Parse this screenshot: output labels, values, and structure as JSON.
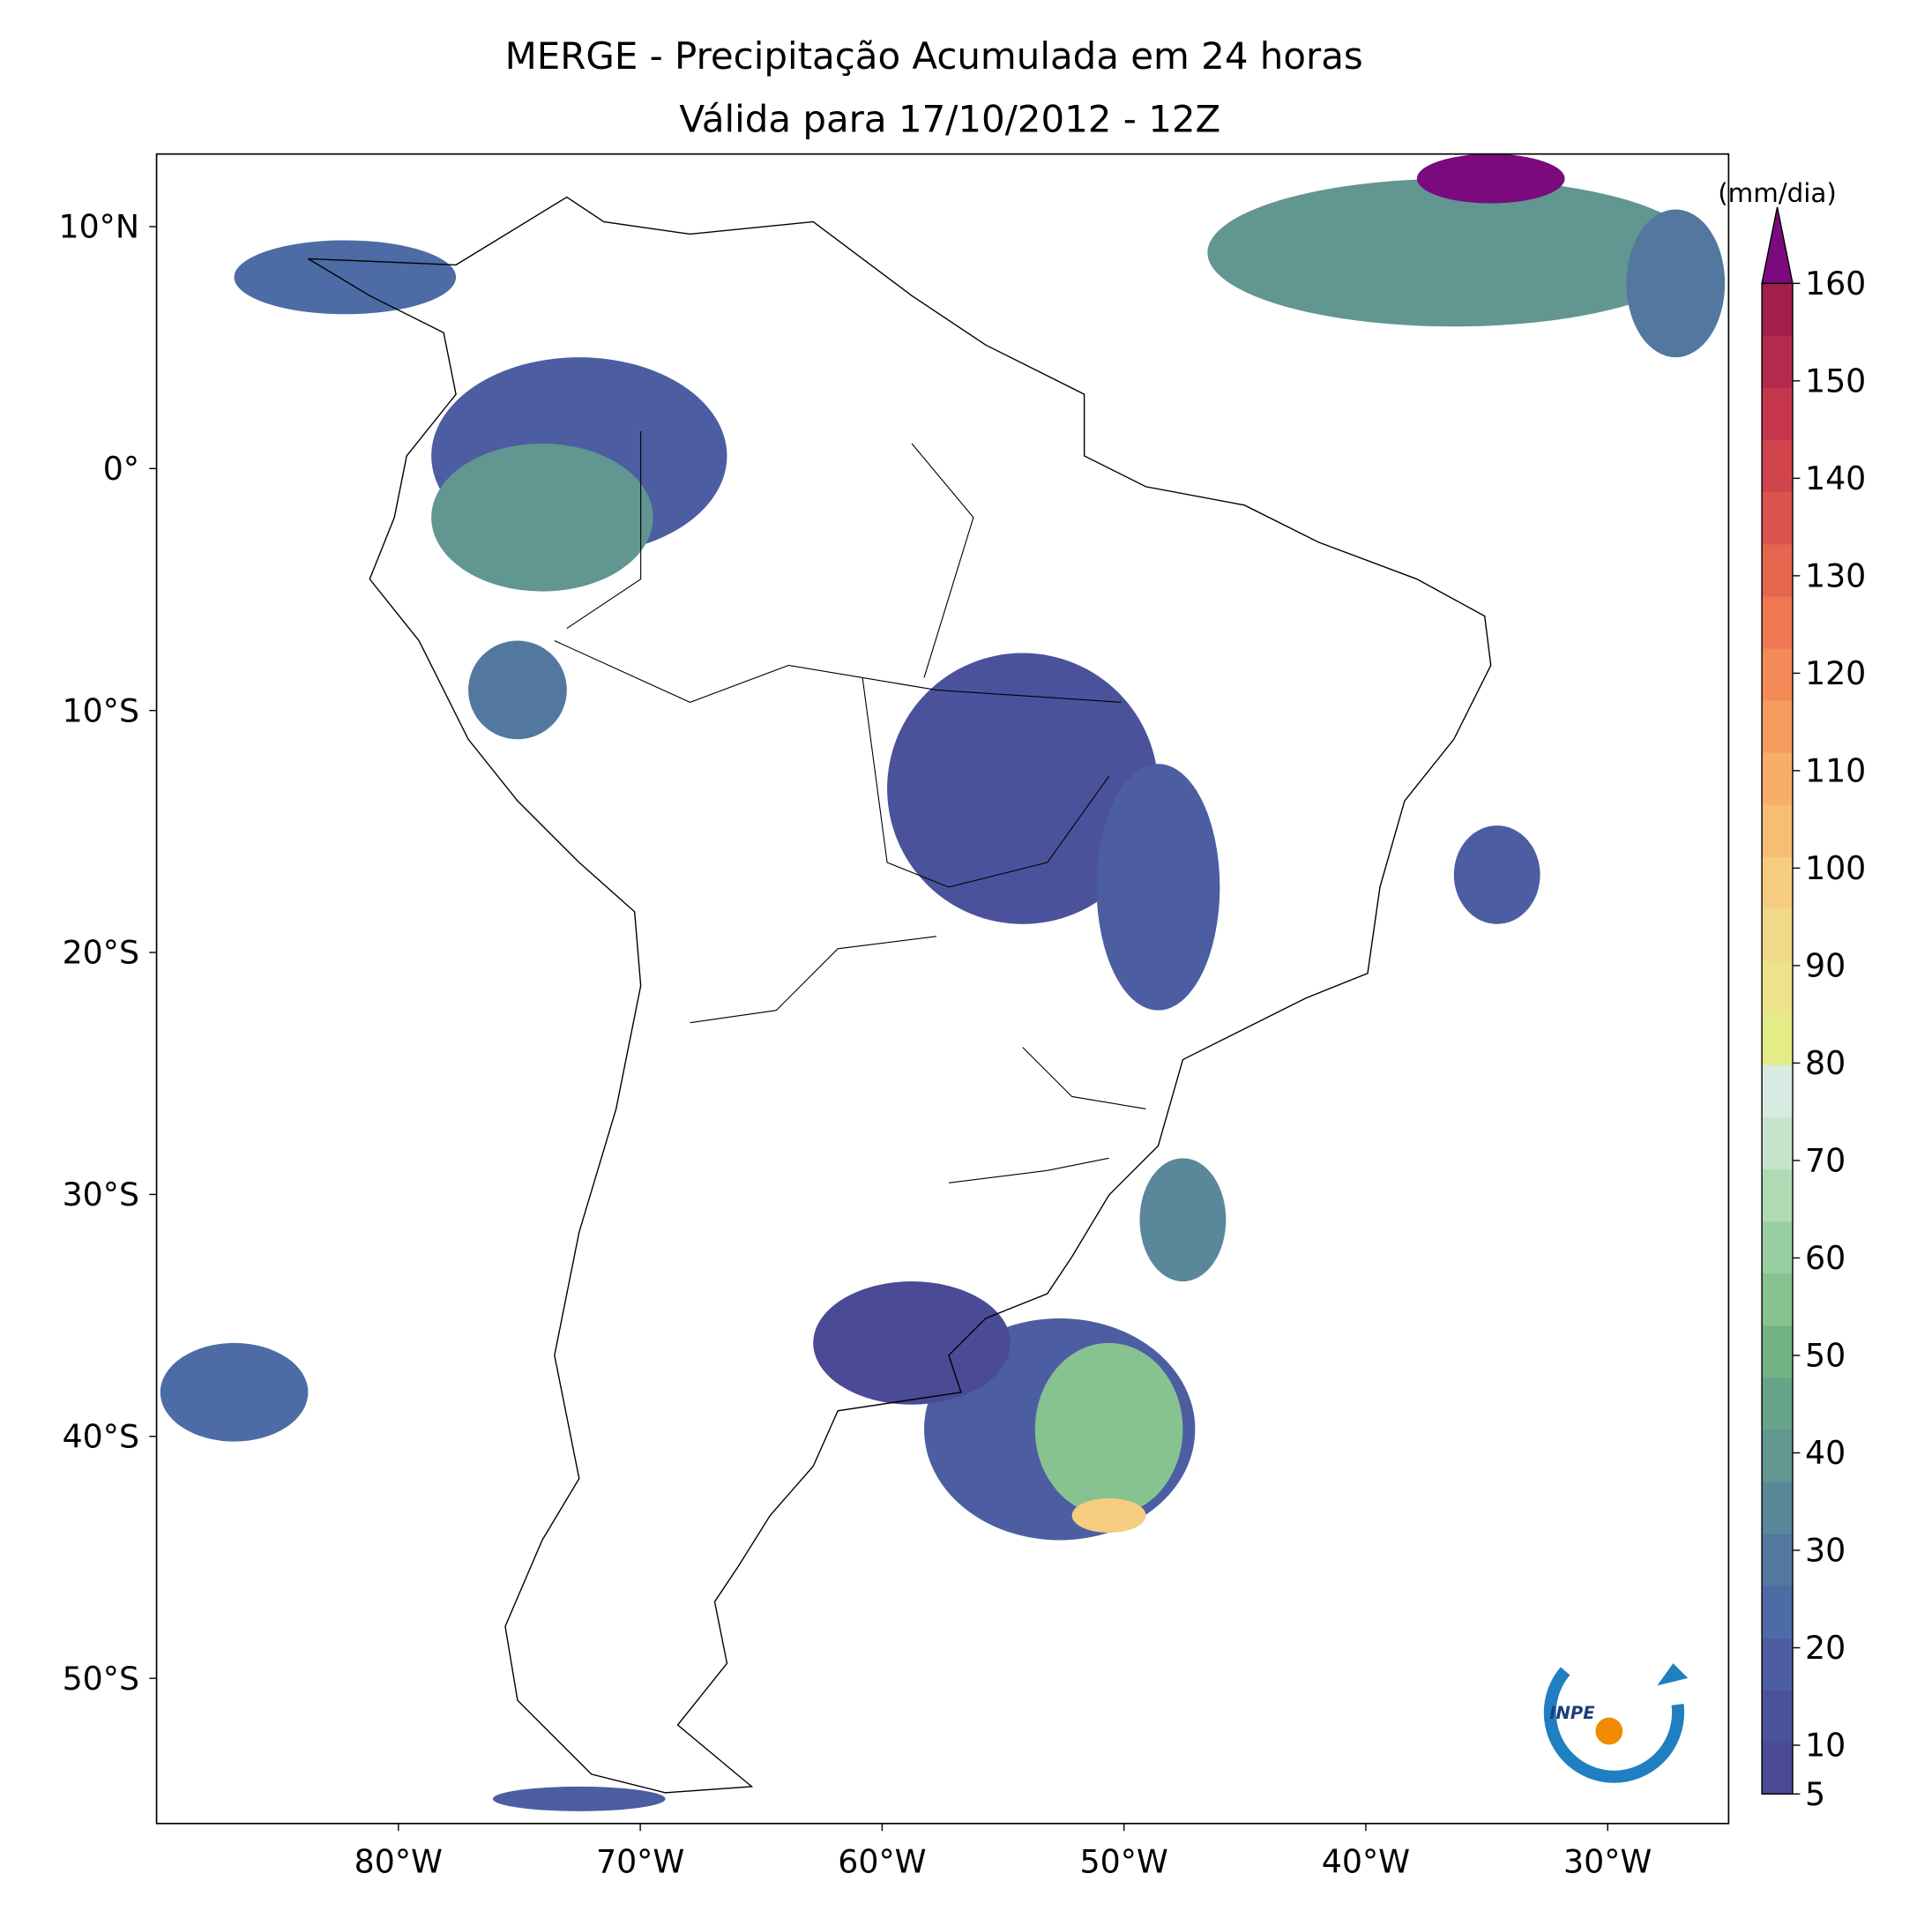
{
  "chart_data": {
    "type": "precipitation-map",
    "title": "MERGE - Precipitação Acumulada em 24 horas",
    "subtitle": "Válida para 17/10/2012 - 12Z",
    "xlim": [
      -90,
      -25
    ],
    "ylim": [
      -56,
      13
    ],
    "xticks": [
      {
        "value": -80,
        "label": "80°W"
      },
      {
        "value": -70,
        "label": "70°W"
      },
      {
        "value": -60,
        "label": "60°W"
      },
      {
        "value": -50,
        "label": "50°W"
      },
      {
        "value": -40,
        "label": "40°W"
      },
      {
        "value": -30,
        "label": "30°W"
      }
    ],
    "yticks": [
      {
        "value": 10,
        "label": "10°N"
      },
      {
        "value": 0,
        "label": "0°"
      },
      {
        "value": -10,
        "label": "10°S"
      },
      {
        "value": -20,
        "label": "20°S"
      },
      {
        "value": -30,
        "label": "30°S"
      },
      {
        "value": -40,
        "label": "40°S"
      },
      {
        "value": -50,
        "label": "50°S"
      }
    ],
    "colorbar": {
      "label": "(mm/dia)",
      "lim": [
        5,
        160
      ],
      "ticks": [
        5,
        10,
        20,
        30,
        40,
        50,
        60,
        70,
        80,
        90,
        100,
        110,
        120,
        130,
        140,
        150,
        160
      ],
      "colors": [
        "#4a4a96",
        "#4b529c",
        "#4c5ea1",
        "#4d6ba5",
        "#52789f",
        "#5a8799",
        "#619691",
        "#68a489",
        "#73b386",
        "#86c391",
        "#99cfa0",
        "#b0dab4",
        "#c6e4cc",
        "#d8ebe2",
        "#e4ec88",
        "#ece38a",
        "#f1d98a",
        "#f6cc80",
        "#f7bd72",
        "#f8ae67",
        "#f79c5e",
        "#f48a57",
        "#ef7752",
        "#e6654e",
        "#dc544d",
        "#d1444c",
        "#c5364c",
        "#b52a4c",
        "#a31e4c"
      ],
      "extend_color": "#7b0a7e"
    },
    "logo_text": "INPE"
  }
}
